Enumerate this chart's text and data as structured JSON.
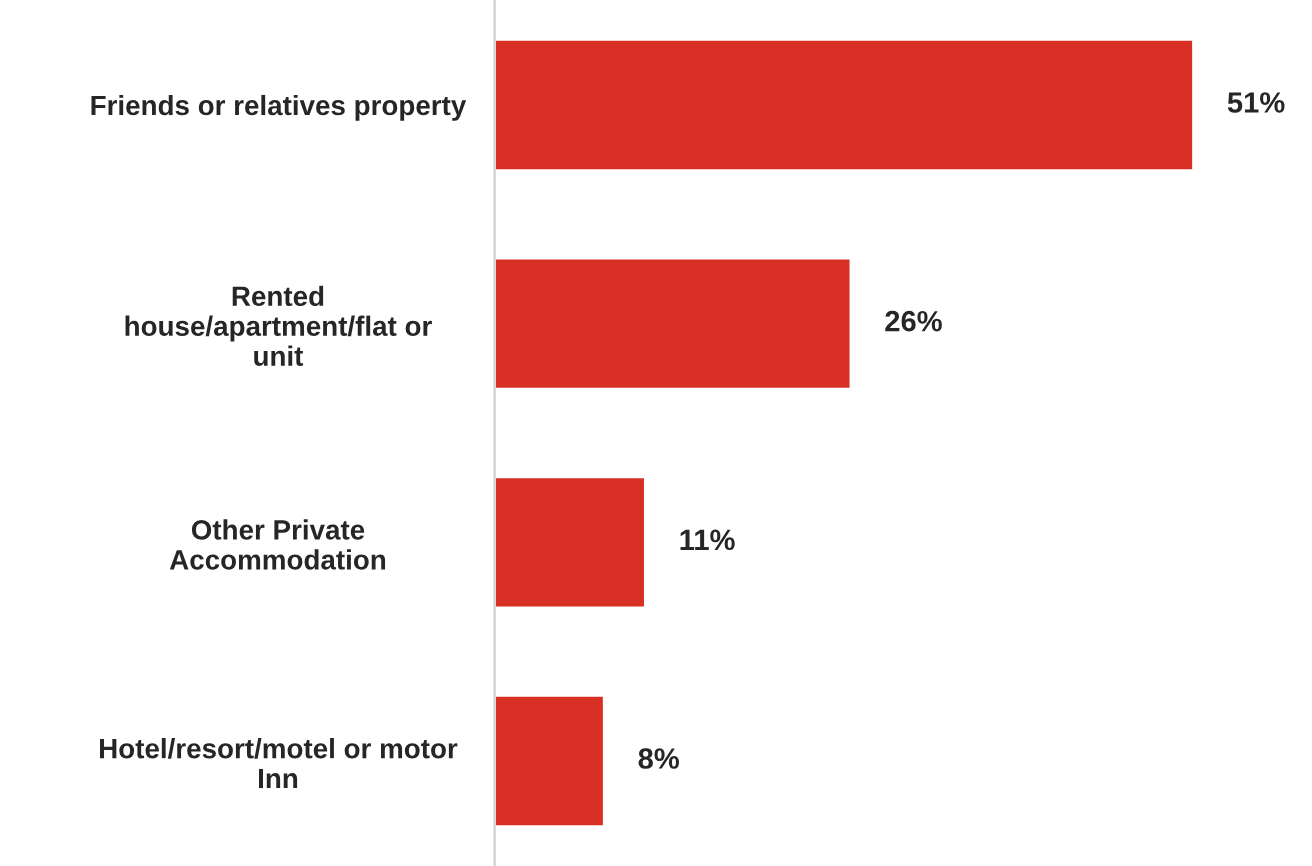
{
  "chart_data": {
    "type": "bar",
    "orientation": "horizontal",
    "categories": [
      "Friends or relatives property",
      "Rented\nhouse/apartment/flat or\nunit",
      "Other Private\nAccommodation",
      "Hotel/resort/motel or motor\nInn"
    ],
    "values": [
      51,
      26,
      11,
      8
    ],
    "value_labels": [
      "51%",
      "26%",
      "11%",
      "8%"
    ],
    "color": "#d93025",
    "grid": false,
    "legend": false
  }
}
